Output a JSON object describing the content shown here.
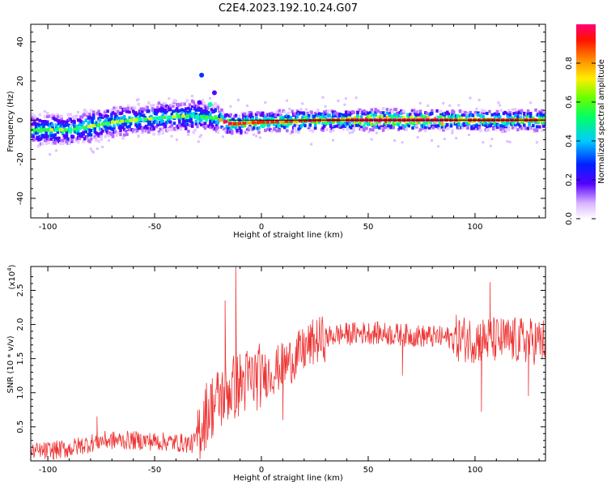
{
  "title": "C2E4.2023.192.10.24.G07",
  "chart_data": [
    {
      "type": "heatmap",
      "xlabel": "Height of straight line (km)",
      "ylabel": "Frequency (Hz)",
      "xlim": [
        -108,
        133
      ],
      "ylim": [
        -50,
        49
      ],
      "xticks": [
        -100,
        -50,
        0,
        50,
        100
      ],
      "yticks": [
        -40,
        -20,
        0,
        20,
        40
      ],
      "ridge": [
        {
          "x": -108,
          "y": -5
        },
        {
          "x": -90,
          "y": -5
        },
        {
          "x": -80,
          "y": -3
        },
        {
          "x": -70,
          "y": -1
        },
        {
          "x": -60,
          "y": 0
        },
        {
          "x": -50,
          "y": 1
        },
        {
          "x": -40,
          "y": 2
        },
        {
          "x": -30,
          "y": 2
        },
        {
          "x": -22,
          "y": 1
        },
        {
          "x": -15,
          "y": -2
        },
        {
          "x": 0,
          "y": -1
        },
        {
          "x": 30,
          "y": 0
        },
        {
          "x": 60,
          "y": 0
        },
        {
          "x": 90,
          "y": 0
        },
        {
          "x": 133,
          "y": 0
        }
      ],
      "colorbar": {
        "label": "Normalized spectral amplitude",
        "ticks": [
          "0.0",
          "0.2",
          "0.4",
          "0.6",
          "0.8"
        ],
        "range": [
          0,
          1
        ]
      },
      "zero_line": true
    },
    {
      "type": "line",
      "xlabel": "Height of straight line (km)",
      "ylabel": "SNR (10 * v/v)",
      "scale_label": "(x10",
      "scale_exp": "4",
      "scale_close": ")",
      "xlim": [
        -108,
        133
      ],
      "ylim": [
        0,
        2.85
      ],
      "xticks": [
        -100,
        -50,
        0,
        50,
        100
      ],
      "yticks": [
        "0.5",
        "1.0",
        "1.5",
        "2.0",
        "2.5"
      ],
      "series": [
        {
          "color": "#ee3333",
          "trend": [
            {
              "x": -108,
              "y": 0.12
            },
            {
              "x": -90,
              "y": 0.18
            },
            {
              "x": -75,
              "y": 0.3
            },
            {
              "x": -60,
              "y": 0.3
            },
            {
              "x": -45,
              "y": 0.28
            },
            {
              "x": -32,
              "y": 0.25
            },
            {
              "x": -25,
              "y": 0.75
            },
            {
              "x": -15,
              "y": 1.05
            },
            {
              "x": -5,
              "y": 1.2
            },
            {
              "x": 5,
              "y": 1.3
            },
            {
              "x": 15,
              "y": 1.5
            },
            {
              "x": 25,
              "y": 1.75
            },
            {
              "x": 35,
              "y": 1.85
            },
            {
              "x": 50,
              "y": 1.88
            },
            {
              "x": 65,
              "y": 1.85
            },
            {
              "x": 80,
              "y": 1.82
            },
            {
              "x": 100,
              "y": 1.78
            },
            {
              "x": 133,
              "y": 1.75
            }
          ],
          "spikes": [
            {
              "x": -12,
              "y": 2.85
            },
            {
              "x": -17,
              "y": 2.35
            },
            {
              "x": 10,
              "y": 0.6
            },
            {
              "x": 107,
              "y": 2.62
            },
            {
              "x": 103,
              "y": 0.72
            },
            {
              "x": 125,
              "y": 0.95
            },
            {
              "x": -77,
              "y": 0.65
            },
            {
              "x": 66,
              "y": 1.25
            }
          ]
        }
      ]
    }
  ]
}
